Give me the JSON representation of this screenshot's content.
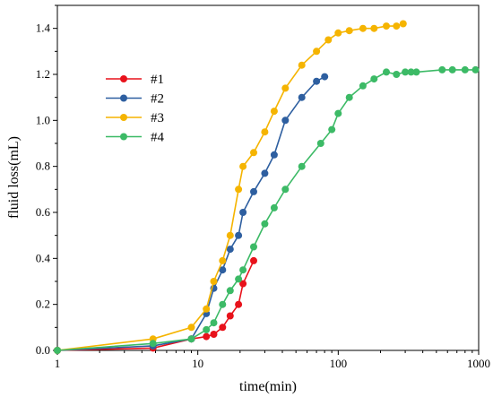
{
  "chart_data": {
    "type": "line",
    "xlabel": "time(min)",
    "ylabel": "fluid loss(mL)",
    "xscale": "log",
    "xlim": [
      1,
      1000
    ],
    "ylim": [
      0,
      1.5
    ],
    "xticks": [
      1,
      10,
      100,
      1000
    ],
    "xtick_labels": [
      "1",
      "10",
      "100",
      "1000"
    ],
    "yticks": [
      0.0,
      0.2,
      0.4,
      0.6,
      0.8,
      1.0,
      1.2,
      1.4
    ],
    "ytick_labels": [
      "0.0",
      "0.2",
      "0.4",
      "0.6",
      "0.8",
      "1.0",
      "1.2",
      "1.4"
    ],
    "legend_position": "upper-left",
    "grid": false,
    "series": [
      {
        "name": "#1",
        "color": "#e8121b",
        "points": [
          [
            1,
            0.0
          ],
          [
            4.8,
            0.01
          ],
          [
            9,
            0.05
          ],
          [
            11.5,
            0.06
          ],
          [
            13,
            0.07
          ],
          [
            15,
            0.1
          ],
          [
            17,
            0.15
          ],
          [
            19.5,
            0.2
          ],
          [
            21,
            0.29
          ],
          [
            25,
            0.39
          ]
        ]
      },
      {
        "name": "#2",
        "color": "#2e5fa0",
        "points": [
          [
            1,
            0.0
          ],
          [
            4.8,
            0.02
          ],
          [
            9,
            0.05
          ],
          [
            11.5,
            0.16
          ],
          [
            13,
            0.27
          ],
          [
            15,
            0.35
          ],
          [
            17,
            0.44
          ],
          [
            19.5,
            0.5
          ],
          [
            21,
            0.6
          ],
          [
            25,
            0.69
          ],
          [
            30,
            0.77
          ],
          [
            35,
            0.85
          ],
          [
            42,
            1.0
          ],
          [
            55,
            1.1
          ],
          [
            70,
            1.17
          ],
          [
            80,
            1.19
          ]
        ]
      },
      {
        "name": "#3",
        "color": "#f5b400",
        "points": [
          [
            1,
            0.0
          ],
          [
            4.8,
            0.05
          ],
          [
            9,
            0.1
          ],
          [
            11.5,
            0.18
          ],
          [
            13,
            0.3
          ],
          [
            15,
            0.39
          ],
          [
            17,
            0.5
          ],
          [
            19.5,
            0.7
          ],
          [
            21,
            0.8
          ],
          [
            25,
            0.86
          ],
          [
            30,
            0.95
          ],
          [
            35,
            1.04
          ],
          [
            42,
            1.14
          ],
          [
            55,
            1.24
          ],
          [
            70,
            1.3
          ],
          [
            85,
            1.35
          ],
          [
            100,
            1.38
          ],
          [
            120,
            1.39
          ],
          [
            150,
            1.4
          ],
          [
            180,
            1.4
          ],
          [
            220,
            1.41
          ],
          [
            260,
            1.41
          ],
          [
            290,
            1.42
          ]
        ]
      },
      {
        "name": "#4",
        "color": "#3cba66",
        "points": [
          [
            1,
            0.0
          ],
          [
            4.8,
            0.03
          ],
          [
            9,
            0.05
          ],
          [
            11.5,
            0.09
          ],
          [
            13,
            0.12
          ],
          [
            15,
            0.2
          ],
          [
            17,
            0.26
          ],
          [
            19.5,
            0.31
          ],
          [
            21,
            0.35
          ],
          [
            25,
            0.45
          ],
          [
            30,
            0.55
          ],
          [
            35,
            0.62
          ],
          [
            42,
            0.7
          ],
          [
            55,
            0.8
          ],
          [
            75,
            0.9
          ],
          [
            90,
            0.96
          ],
          [
            100,
            1.03
          ],
          [
            120,
            1.1
          ],
          [
            150,
            1.15
          ],
          [
            180,
            1.18
          ],
          [
            220,
            1.21
          ],
          [
            260,
            1.2
          ],
          [
            300,
            1.21
          ],
          [
            330,
            1.21
          ],
          [
            360,
            1.21
          ],
          [
            550,
            1.22
          ],
          [
            650,
            1.22
          ],
          [
            800,
            1.22
          ],
          [
            950,
            1.22
          ]
        ]
      }
    ]
  }
}
